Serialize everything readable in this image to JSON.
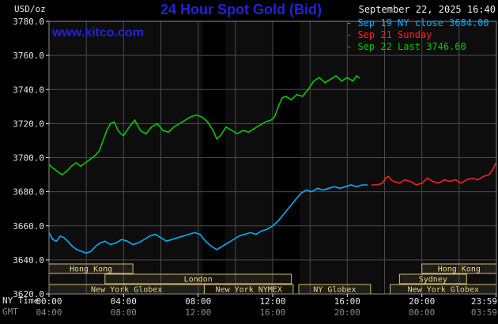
{
  "header": {
    "units": "USD/oz",
    "title": "24 Hour Spot Gold (Bid)",
    "datetime": "September 22, 2025 16:40",
    "watermark": "www.kitco.com"
  },
  "legend": [
    {
      "label": "- Sep 19 NY close 3684.00",
      "color": "#00b0ff"
    },
    {
      "label": "- Sep 21 Sunday",
      "color": "#ff2020"
    },
    {
      "label": "- Sep 22 Last 3746.60",
      "color": "#00cc00"
    }
  ],
  "footer": {
    "ny_time_label": "NY Time",
    "gmt_label": "GMT"
  },
  "colors": {
    "brand_blue": "#2222dd",
    "date_text": "#f2eedd"
  },
  "chart_data": {
    "type": "line",
    "title": "24 Hour Spot Gold (Bid)",
    "ylabel": "USD/oz",
    "xlabel_primary": "NY Time",
    "xlabel_secondary": "GMT",
    "ylim": [
      3620,
      3780
    ],
    "grid": true,
    "legend_position": "top-right",
    "y_ticks": [
      3620,
      3640,
      3660,
      3680,
      3700,
      3720,
      3740,
      3760,
      3780
    ],
    "x_ticks": [
      {
        "h": 0,
        "ny": "00:00",
        "gmt": "04:00"
      },
      {
        "h": 4,
        "ny": "04:00",
        "gmt": "08:00"
      },
      {
        "h": 8,
        "ny": "08:00",
        "gmt": "12:00"
      },
      {
        "h": 12,
        "ny": "12:00",
        "gmt": "16:00"
      },
      {
        "h": 16,
        "ny": "16:00",
        "gmt": "20:00"
      },
      {
        "h": 20,
        "ny": "20:00",
        "gmt": "00:00"
      },
      {
        "h": 23.983,
        "ny": "23:59",
        "gmt": "03:59"
      }
    ],
    "series": [
      {
        "id": "sep19",
        "name": "Sep 19 NY close 3684.00",
        "color": "#00b0ff",
        "points": [
          [
            0,
            3656
          ],
          [
            0.2,
            3652
          ],
          [
            0.4,
            3651
          ],
          [
            0.6,
            3654
          ],
          [
            0.8,
            3653
          ],
          [
            1.0,
            3651
          ],
          [
            1.25,
            3648
          ],
          [
            1.5,
            3646
          ],
          [
            1.75,
            3645
          ],
          [
            2.0,
            3644
          ],
          [
            2.25,
            3645
          ],
          [
            2.5,
            3648
          ],
          [
            2.75,
            3650
          ],
          [
            3.0,
            3651
          ],
          [
            3.3,
            3649
          ],
          [
            3.6,
            3650
          ],
          [
            3.9,
            3652
          ],
          [
            4.2,
            3651
          ],
          [
            4.5,
            3649
          ],
          [
            4.8,
            3650
          ],
          [
            5.1,
            3652
          ],
          [
            5.4,
            3654
          ],
          [
            5.7,
            3655
          ],
          [
            6.0,
            3653
          ],
          [
            6.3,
            3651
          ],
          [
            6.6,
            3652
          ],
          [
            6.9,
            3653
          ],
          [
            7.2,
            3654
          ],
          [
            7.5,
            3655
          ],
          [
            7.8,
            3656
          ],
          [
            8.1,
            3655
          ],
          [
            8.4,
            3651
          ],
          [
            8.7,
            3648
          ],
          [
            9.0,
            3646
          ],
          [
            9.3,
            3648
          ],
          [
            9.6,
            3650
          ],
          [
            9.9,
            3652
          ],
          [
            10.2,
            3654
          ],
          [
            10.5,
            3655
          ],
          [
            10.8,
            3656
          ],
          [
            11.1,
            3655
          ],
          [
            11.4,
            3657
          ],
          [
            11.7,
            3658
          ],
          [
            12.0,
            3660
          ],
          [
            12.3,
            3663
          ],
          [
            12.6,
            3667
          ],
          [
            12.9,
            3671
          ],
          [
            13.2,
            3675
          ],
          [
            13.5,
            3679
          ],
          [
            13.8,
            3681
          ],
          [
            14.1,
            3680
          ],
          [
            14.4,
            3682
          ],
          [
            14.7,
            3681
          ],
          [
            15.0,
            3682
          ],
          [
            15.3,
            3683
          ],
          [
            15.6,
            3682
          ],
          [
            15.9,
            3683
          ],
          [
            16.2,
            3684
          ],
          [
            16.5,
            3683
          ],
          [
            16.8,
            3684
          ],
          [
            17.1,
            3684
          ]
        ]
      },
      {
        "id": "sep21",
        "name": "Sep 21 Sunday",
        "color": "#ff2020",
        "points": [
          [
            17.3,
            3684
          ],
          [
            17.6,
            3684
          ],
          [
            17.9,
            3685
          ],
          [
            18.05,
            3688
          ],
          [
            18.2,
            3689
          ],
          [
            18.35,
            3687
          ],
          [
            18.5,
            3686
          ],
          [
            18.8,
            3685
          ],
          [
            19.1,
            3687
          ],
          [
            19.4,
            3686
          ],
          [
            19.7,
            3684
          ],
          [
            20.0,
            3685
          ],
          [
            20.3,
            3688
          ],
          [
            20.6,
            3686
          ],
          [
            20.9,
            3685
          ],
          [
            21.2,
            3687
          ],
          [
            21.5,
            3686
          ],
          [
            21.8,
            3687
          ],
          [
            22.1,
            3685
          ],
          [
            22.4,
            3687
          ],
          [
            22.7,
            3688
          ],
          [
            23.0,
            3687
          ],
          [
            23.3,
            3689
          ],
          [
            23.6,
            3690
          ],
          [
            23.8,
            3693
          ],
          [
            23.98,
            3697
          ]
        ]
      },
      {
        "id": "sep22",
        "name": "Sep 22 Last 3746.60",
        "color": "#00cc00",
        "points": [
          [
            0,
            3696
          ],
          [
            0.2,
            3694
          ],
          [
            0.45,
            3692
          ],
          [
            0.7,
            3690
          ],
          [
            0.95,
            3692
          ],
          [
            1.2,
            3695
          ],
          [
            1.45,
            3697
          ],
          [
            1.7,
            3695
          ],
          [
            1.95,
            3697
          ],
          [
            2.2,
            3699
          ],
          [
            2.45,
            3701
          ],
          [
            2.7,
            3704
          ],
          [
            2.9,
            3710
          ],
          [
            3.1,
            3716
          ],
          [
            3.3,
            3720
          ],
          [
            3.5,
            3721
          ],
          [
            3.7,
            3716
          ],
          [
            3.85,
            3714
          ],
          [
            4.0,
            3713
          ],
          [
            4.3,
            3718
          ],
          [
            4.6,
            3722
          ],
          [
            4.9,
            3716
          ],
          [
            5.2,
            3714
          ],
          [
            5.5,
            3718
          ],
          [
            5.8,
            3720
          ],
          [
            6.1,
            3716
          ],
          [
            6.4,
            3715
          ],
          [
            6.7,
            3718
          ],
          [
            7.0,
            3720
          ],
          [
            7.3,
            3722
          ],
          [
            7.6,
            3724
          ],
          [
            7.9,
            3725
          ],
          [
            8.2,
            3724
          ],
          [
            8.5,
            3721
          ],
          [
            8.8,
            3716
          ],
          [
            9.0,
            3711
          ],
          [
            9.2,
            3713
          ],
          [
            9.5,
            3718
          ],
          [
            9.8,
            3716
          ],
          [
            10.1,
            3714
          ],
          [
            10.4,
            3716
          ],
          [
            10.7,
            3715
          ],
          [
            11.0,
            3717
          ],
          [
            11.3,
            3719
          ],
          [
            11.6,
            3721
          ],
          [
            11.9,
            3722
          ],
          [
            12.1,
            3724
          ],
          [
            12.3,
            3730
          ],
          [
            12.5,
            3735
          ],
          [
            12.7,
            3736
          ],
          [
            13.0,
            3734
          ],
          [
            13.3,
            3737
          ],
          [
            13.6,
            3736
          ],
          [
            13.9,
            3740
          ],
          [
            14.2,
            3745
          ],
          [
            14.5,
            3747
          ],
          [
            14.8,
            3744
          ],
          [
            15.1,
            3746
          ],
          [
            15.4,
            3748
          ],
          [
            15.7,
            3745
          ],
          [
            16.0,
            3747
          ],
          [
            16.3,
            3745
          ],
          [
            16.5,
            3748
          ],
          [
            16.67,
            3746.6
          ]
        ]
      }
    ],
    "sessions": [
      {
        "row": 0,
        "start": 0,
        "end": 4.5,
        "label": "Hong Kong"
      },
      {
        "row": 0,
        "start": 20,
        "end": 24,
        "label": "Hong Kong"
      },
      {
        "row": 1,
        "start": 3,
        "end": 13,
        "label": "London"
      },
      {
        "row": 1,
        "start": 18.8,
        "end": 22.4,
        "label": "Sydney"
      },
      {
        "row": 2,
        "start": 0,
        "end": 8.33,
        "label": "New York Globex"
      },
      {
        "row": 2,
        "start": 8.33,
        "end": 13.1,
        "label": "New York NYMEX"
      },
      {
        "row": 2,
        "start": 13.4,
        "end": 17.25,
        "label": "NY Globex"
      },
      {
        "row": 2,
        "start": 18.3,
        "end": 24,
        "label": "New York Globex"
      }
    ],
    "bands": [
      {
        "start": 8.25,
        "end": 9.45
      },
      {
        "start": 12.0,
        "end": 13.45
      }
    ],
    "colors": {
      "plot_bg": "#0d0d0d",
      "band": "#000000",
      "grid": "#4a4a4a",
      "frame": "#8c8c8c",
      "session_border": "#cdbd72",
      "session_fill": "rgba(205,189,114,0.10)",
      "session_text": "#e8d88e",
      "axis_text": "#e6e6e6",
      "gmt_text": "#8a8a8a"
    }
  }
}
